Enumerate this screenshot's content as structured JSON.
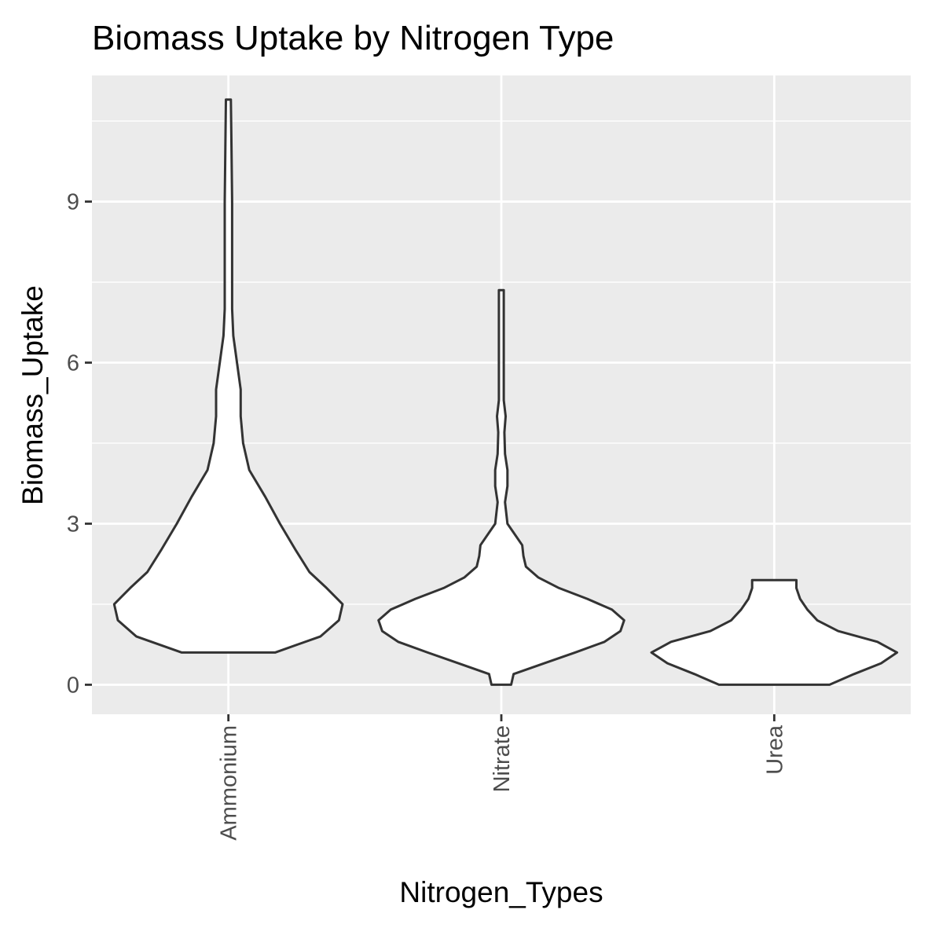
{
  "chart_data": {
    "type": "violin",
    "title": "Biomass Uptake by Nitrogen Type",
    "xlabel": "Nitrogen_Types",
    "ylabel": "Biomass_Uptake",
    "categories": [
      "Ammonium",
      "Nitrate",
      "Urea"
    ],
    "ylim": [
      -0.55,
      11.35
    ],
    "yticks": [
      0,
      3,
      6,
      9
    ],
    "ytick_labels": [
      "0",
      "3",
      "6",
      "9"
    ],
    "grid": true,
    "violins": [
      {
        "category": "Ammonium",
        "min": 0.6,
        "max": 10.9,
        "profile": [
          [
            0.6,
            0.38
          ],
          [
            0.9,
            0.75
          ],
          [
            1.2,
            0.9
          ],
          [
            1.5,
            0.93
          ],
          [
            1.8,
            0.8
          ],
          [
            2.1,
            0.66
          ],
          [
            2.5,
            0.55
          ],
          [
            3.0,
            0.42
          ],
          [
            3.5,
            0.3
          ],
          [
            4.0,
            0.17
          ],
          [
            4.5,
            0.12
          ],
          [
            5.0,
            0.1
          ],
          [
            5.5,
            0.1
          ],
          [
            6.0,
            0.07
          ],
          [
            6.5,
            0.04
          ],
          [
            7.0,
            0.03
          ],
          [
            8.0,
            0.03
          ],
          [
            9.0,
            0.03
          ],
          [
            10.0,
            0.025
          ],
          [
            10.9,
            0.02
          ]
        ]
      },
      {
        "category": "Nitrate",
        "min": 0.0,
        "max": 7.35,
        "profile": [
          [
            0.0,
            0.08
          ],
          [
            0.2,
            0.1
          ],
          [
            0.4,
            0.35
          ],
          [
            0.6,
            0.6
          ],
          [
            0.8,
            0.84
          ],
          [
            1.0,
            0.97
          ],
          [
            1.2,
            1.0
          ],
          [
            1.4,
            0.9
          ],
          [
            1.6,
            0.7
          ],
          [
            1.8,
            0.47
          ],
          [
            2.0,
            0.3
          ],
          [
            2.2,
            0.2
          ],
          [
            2.4,
            0.18
          ],
          [
            2.6,
            0.17
          ],
          [
            2.8,
            0.11
          ],
          [
            3.0,
            0.05
          ],
          [
            3.4,
            0.03
          ],
          [
            3.7,
            0.05
          ],
          [
            4.0,
            0.05
          ],
          [
            4.3,
            0.03
          ],
          [
            4.7,
            0.025
          ],
          [
            5.0,
            0.035
          ],
          [
            5.3,
            0.02
          ],
          [
            6.0,
            0.02
          ],
          [
            7.0,
            0.02
          ],
          [
            7.35,
            0.02
          ]
        ]
      },
      {
        "category": "Urea",
        "min": 0.0,
        "max": 1.95,
        "profile": [
          [
            0.0,
            0.45
          ],
          [
            0.2,
            0.65
          ],
          [
            0.4,
            0.87
          ],
          [
            0.6,
            1.0
          ],
          [
            0.8,
            0.84
          ],
          [
            1.0,
            0.52
          ],
          [
            1.2,
            0.35
          ],
          [
            1.4,
            0.27
          ],
          [
            1.6,
            0.21
          ],
          [
            1.8,
            0.18
          ],
          [
            1.95,
            0.18
          ]
        ]
      }
    ]
  }
}
